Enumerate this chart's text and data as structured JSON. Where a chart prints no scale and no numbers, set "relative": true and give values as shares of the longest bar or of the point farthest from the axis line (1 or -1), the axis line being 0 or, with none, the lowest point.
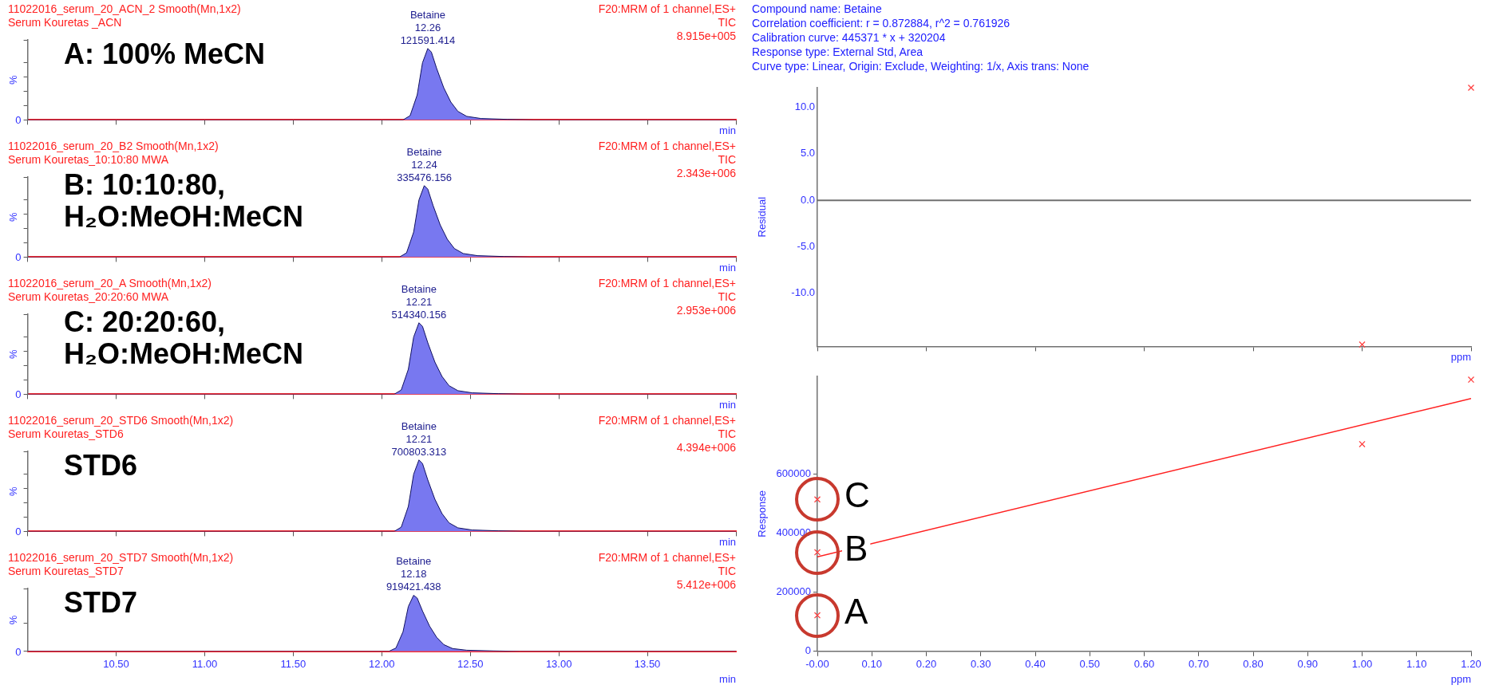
{
  "chart_data": [
    {
      "type": "area",
      "title": "11022016_serum_20_ACN_2 Smooth(Mn,1x2)",
      "subtitle": "Serum Kouretas _ACN",
      "xlabel": "min",
      "ylabel": "%",
      "relative": true,
      "tick_labels": false,
      "legend": false,
      "xlim": [
        10.0,
        14.0
      ],
      "x": [
        10.0,
        12.12,
        12.16,
        12.2,
        12.23,
        12.26,
        12.28,
        12.31,
        12.35,
        12.39,
        12.43,
        12.48,
        12.56,
        12.71,
        12.86,
        14.0
      ],
      "series": [
        {
          "color": "#7878f0",
          "values": [
            0,
            0,
            0.06,
            0.35,
            0.8,
            1,
            0.95,
            0.72,
            0.45,
            0.25,
            0.12,
            0.05,
            0.02,
            0.008,
            0,
            0
          ]
        }
      ],
      "annotations": [
        "A: 100% MeCN",
        "F20:MRM of 1 channel,ES+",
        "TIC",
        "8.915e+005",
        "0",
        {
          "text": "Betaine",
          "x": 12.26,
          "y": 1
        },
        {
          "text": "12.26",
          "x": 12.26,
          "y": 1
        },
        {
          "text": "121591.414",
          "x": 12.26,
          "y": 1
        }
      ]
    },
    {
      "type": "area",
      "title": "11022016_serum_20_B2 Smooth(Mn,1x2)",
      "subtitle": "Serum Kouretas_10:10:80 MWA",
      "xlabel": "min",
      "ylabel": "%",
      "relative": true,
      "tick_labels": false,
      "legend": false,
      "xlim": [
        10.0,
        14.0
      ],
      "x": [
        10.0,
        12.1,
        12.14,
        12.18,
        12.21,
        12.24,
        12.26,
        12.29,
        12.33,
        12.37,
        12.41,
        12.46,
        12.54,
        12.69,
        12.84,
        14.0
      ],
      "series": [
        {
          "color": "#7878f0",
          "values": [
            0,
            0,
            0.06,
            0.35,
            0.8,
            1,
            0.95,
            0.72,
            0.45,
            0.25,
            0.12,
            0.05,
            0.02,
            0.008,
            0,
            0
          ]
        }
      ],
      "annotations": [
        "B: 10:10:80, H₂O:MeOH:MeCN",
        "F20:MRM of 1 channel,ES+",
        "TIC",
        "2.343e+006",
        "0",
        {
          "text": "Betaine",
          "x": 12.24,
          "y": 1
        },
        {
          "text": "12.24",
          "x": 12.24,
          "y": 1
        },
        {
          "text": "335476.156",
          "x": 12.24,
          "y": 1
        }
      ]
    },
    {
      "type": "area",
      "title": "11022016_serum_20_A Smooth(Mn,1x2)",
      "subtitle": "Serum Kouretas_20:20:60 MWA",
      "xlabel": "min",
      "ylabel": "%",
      "relative": true,
      "tick_labels": false,
      "legend": false,
      "xlim": [
        10.0,
        14.0
      ],
      "x": [
        10.0,
        12.07,
        12.11,
        12.15,
        12.18,
        12.21,
        12.23,
        12.26,
        12.3,
        12.34,
        12.38,
        12.43,
        12.51,
        12.66,
        12.81,
        14.0
      ],
      "series": [
        {
          "color": "#7878f0",
          "values": [
            0,
            0,
            0.06,
            0.35,
            0.8,
            1,
            0.95,
            0.72,
            0.45,
            0.25,
            0.12,
            0.05,
            0.02,
            0.008,
            0,
            0
          ]
        }
      ],
      "annotations": [
        "C: 20:20:60, H₂O:MeOH:MeCN",
        "F20:MRM of 1 channel,ES+",
        "TIC",
        "2.953e+006",
        "0",
        {
          "text": "Betaine",
          "x": 12.21,
          "y": 1
        },
        {
          "text": "12.21",
          "x": 12.21,
          "y": 1
        },
        {
          "text": "514340.156",
          "x": 12.21,
          "y": 1
        }
      ]
    },
    {
      "type": "area",
      "title": "11022016_serum_20_STD6 Smooth(Mn,1x2)",
      "subtitle": "Serum Kouretas_STD6",
      "xlabel": "min",
      "ylabel": "%",
      "relative": true,
      "tick_labels": false,
      "legend": false,
      "xlim": [
        10.0,
        14.0
      ],
      "x": [
        10.0,
        12.07,
        12.11,
        12.15,
        12.18,
        12.21,
        12.23,
        12.26,
        12.3,
        12.34,
        12.38,
        12.43,
        12.51,
        12.66,
        12.81,
        14.0
      ],
      "series": [
        {
          "color": "#7878f0",
          "values": [
            0,
            0,
            0.06,
            0.35,
            0.8,
            1,
            0.95,
            0.72,
            0.45,
            0.25,
            0.12,
            0.05,
            0.02,
            0.008,
            0,
            0
          ]
        }
      ],
      "annotations": [
        "STD6",
        "F20:MRM of 1 channel,ES+",
        "TIC",
        "4.394e+006",
        "0",
        {
          "text": "Betaine",
          "x": 12.21,
          "y": 1
        },
        {
          "text": "12.21",
          "x": 12.21,
          "y": 1
        },
        {
          "text": "700803.313",
          "x": 12.21,
          "y": 1
        }
      ]
    },
    {
      "type": "area",
      "title": "11022016_serum_20_STD7 Smooth(Mn,1x2)",
      "subtitle": "Serum Kouretas_STD7",
      "xlabel": "min",
      "ylabel": "%",
      "relative": true,
      "tick_labels": "x",
      "legend": false,
      "xlim": [
        10.0,
        14.0
      ],
      "xticks": [
        {
          "value": 10.5,
          "label": "10.50"
        },
        {
          "value": 11,
          "label": "11.00"
        },
        {
          "value": 11.5,
          "label": "11.50"
        },
        {
          "value": 12,
          "label": "12.00"
        },
        {
          "value": 12.5,
          "label": "12.50"
        },
        {
          "value": 13,
          "label": "13.00"
        },
        {
          "value": 13.5,
          "label": "13.50"
        }
      ],
      "x": [
        10.0,
        12.04,
        12.08,
        12.12,
        12.15,
        12.18,
        12.2,
        12.23,
        12.27,
        12.31,
        12.35,
        12.4,
        12.48,
        12.63,
        12.78,
        14.0
      ],
      "series": [
        {
          "color": "#7878f0",
          "values": [
            0,
            0,
            0.06,
            0.35,
            0.8,
            1,
            0.95,
            0.72,
            0.45,
            0.25,
            0.12,
            0.05,
            0.02,
            0.008,
            0,
            0
          ]
        }
      ],
      "annotations": [
        "STD7",
        "F20:MRM of 1 channel,ES+",
        "TIC",
        "5.412e+006",
        "0",
        {
          "text": "Betaine",
          "x": 12.18,
          "y": 1
        },
        {
          "text": "12.18",
          "x": 12.18,
          "y": 1
        },
        {
          "text": "919421.438",
          "x": 12.18,
          "y": 1
        }
      ]
    },
    {
      "type": "scatter",
      "xlabel": "ppm",
      "ylabel": "Residual",
      "marker": "cross",
      "tick_labels": "y",
      "legend": false,
      "xlim": [
        0,
        1.2
      ],
      "ylim": [
        -15.7,
        12.1
      ],
      "xticks": [
        {
          "value": 0,
          "label": null
        },
        {
          "value": 0.2,
          "label": null
        },
        {
          "value": 0.4,
          "label": null
        },
        {
          "value": 0.6,
          "label": null
        },
        {
          "value": 0.8,
          "label": null
        },
        {
          "value": 1.0,
          "label": null
        },
        {
          "value": 1.2,
          "label": null
        }
      ],
      "yticks": [
        {
          "value": -10,
          "label": "-10.0"
        },
        {
          "value": -5,
          "label": "-5.0"
        },
        {
          "value": 0,
          "label": "0.0"
        },
        {
          "value": 5,
          "label": "5.0"
        },
        {
          "value": 10,
          "label": "10.0"
        }
      ],
      "x": [
        1.0,
        1.2
      ],
      "series": [
        {
          "color": "#ff4040",
          "values": [
            -15.5,
            12.1
          ]
        }
      ],
      "ref_lines": [
        {
          "axis": "y",
          "value": 0,
          "color": "#707070"
        }
      ],
      "annotations": [
        "Compound name: Betaine",
        "Correlation coefficient: r = 0.872884, r^2 = 0.761926",
        "Calibration curve: 445371 * x + 320204",
        "Response type: External Std, Area",
        "Curve type: Linear, Origin: Exclude, Weighting: 1/x, Axis trans: None"
      ]
    },
    {
      "type": "scatter",
      "xlabel": "ppm",
      "ylabel": "Response",
      "marker": "cross",
      "legend": false,
      "xlim": [
        0,
        1.2
      ],
      "ylim": [
        0,
        930000
      ],
      "xticks": [
        {
          "value": 0,
          "label": "-0.00"
        },
        {
          "value": 0.1,
          "label": "0.10"
        },
        {
          "value": 0.2,
          "label": "0.20"
        },
        {
          "value": 0.3,
          "label": "0.30"
        },
        {
          "value": 0.4,
          "label": "0.40"
        },
        {
          "value": 0.5,
          "label": "0.50"
        },
        {
          "value": 0.6,
          "label": "0.60"
        },
        {
          "value": 0.7,
          "label": "0.70"
        },
        {
          "value": 0.8,
          "label": "0.80"
        },
        {
          "value": 0.9,
          "label": "0.90"
        },
        {
          "value": 1.0,
          "label": "1.00"
        },
        {
          "value": 1.1,
          "label": "1.10"
        },
        {
          "value": 1.2,
          "label": "1.20"
        }
      ],
      "yticks": [
        0,
        200000,
        400000,
        600000
      ],
      "x": [
        0,
        0,
        0,
        1.0,
        1.2
      ],
      "series": [
        {
          "color": "#ff4040",
          "values": [
            122000,
            335000,
            514000,
            701000,
            919000
          ]
        },
        {
          "type": "line",
          "marker": "none",
          "color": "#ff2020",
          "x": [
            0,
            1.2
          ],
          "values": [
            320000,
            855000
          ]
        }
      ],
      "annotations": [
        {
          "text": "A",
          "x": 0,
          "y": 122000
        },
        {
          "text": "B",
          "x": 0,
          "y": 335000
        },
        {
          "text": "C",
          "x": 0,
          "y": 514000
        }
      ]
    }
  ]
}
